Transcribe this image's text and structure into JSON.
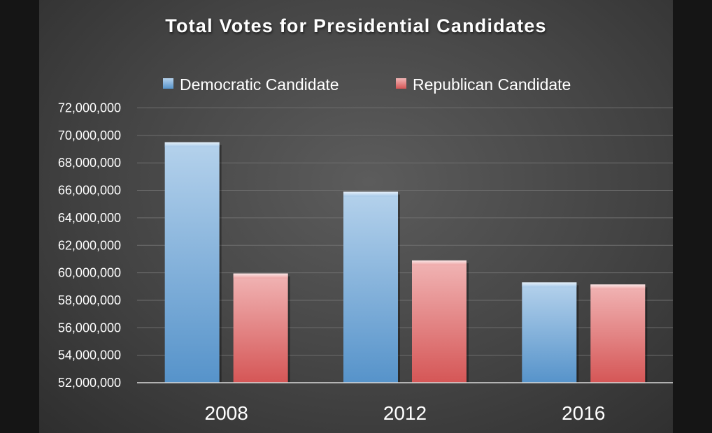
{
  "chart_data": {
    "type": "bar",
    "title": "Total Votes for Presidential Candidates",
    "categories": [
      "2008",
      "2012",
      "2016"
    ],
    "series": [
      {
        "name": "Democratic Candidate",
        "color": "#5b9bd5",
        "values": [
          69500000,
          65900000,
          59300000
        ]
      },
      {
        "name": "Republican Candidate",
        "color": "#e05a5a",
        "values": [
          59950000,
          60900000,
          59150000
        ]
      }
    ],
    "xlabel": "",
    "ylabel": "",
    "ylim": [
      52000000,
      72000000
    ],
    "yticks": [
      {
        "value": 52000000,
        "label": "52,000,000"
      },
      {
        "value": 54000000,
        "label": "54,000,000"
      },
      {
        "value": 56000000,
        "label": "56,000,000"
      },
      {
        "value": 58000000,
        "label": "58,000,000"
      },
      {
        "value": 60000000,
        "label": "60,000,000"
      },
      {
        "value": 62000000,
        "label": "62,000,000"
      },
      {
        "value": 64000000,
        "label": "64,000,000"
      },
      {
        "value": 66000000,
        "label": "66,000,000"
      },
      {
        "value": 68000000,
        "label": "68,000,000"
      },
      {
        "value": 70000000,
        "label": "70,000,000"
      },
      {
        "value": 72000000,
        "label": "72,000,000"
      }
    ],
    "grid": true,
    "legend_position": "top"
  }
}
